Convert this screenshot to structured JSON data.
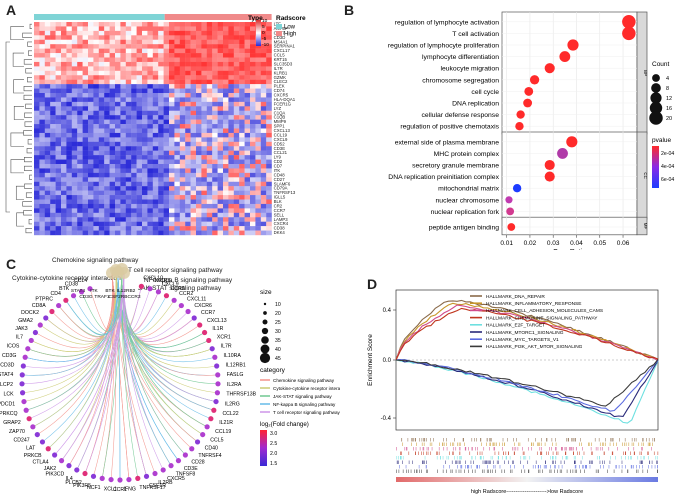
{
  "panels": {
    "a": "A",
    "b": "B",
    "c": "C",
    "d": "D"
  },
  "panel_a": {
    "legend_type_title": "Type",
    "legend_radscore_title": "Radscore",
    "group_labels": [
      "Low",
      "High"
    ],
    "group_colors": [
      "#7fd4d6",
      "#f08a8a"
    ],
    "scale_ticks": [
      "10",
      "5",
      "0",
      "-5",
      "-10"
    ],
    "scale_colors": [
      "#d93030",
      "#ffffff",
      "#2a2ad6"
    ],
    "genes": [
      "LTF",
      "ANPEP",
      "CST7",
      "CD3D",
      "MS4A1",
      "SERPINA1",
      "CXCL17",
      "CCL5",
      "KRT15",
      "SLC35D3",
      "IL7R",
      "KLRB1",
      "GZMK",
      "CLEC2",
      "PLEK",
      "CD74",
      "CXCR5",
      "HLA-DQA1",
      "FCER1G",
      "LYZ",
      "C1QA",
      "C1QB",
      "MMP9",
      "SPP1",
      "CXCL13",
      "CCL19",
      "CXCL9",
      "CD52",
      "CD3E",
      "CCL21",
      "LY9",
      "CD2",
      "CD7",
      "ITK",
      "CD48",
      "CD27",
      "SLAMF6",
      "CD79A",
      "TNFRSF13",
      "IGLL5",
      "BLK",
      "CR2",
      "CCR7",
      "SELL",
      "LAMP3",
      "CXCR4",
      "CD38",
      "DKK4"
    ]
  },
  "panel_b": {
    "title_bp": "BP",
    "title_cc": "CC",
    "title_mf": "MF",
    "xlabel": "GeneRatio",
    "xlim": [
      0.008,
      0.066
    ],
    "xticks": [
      "0.01",
      "0.02",
      "0.03",
      "0.04",
      "0.05",
      "0.06"
    ],
    "count_title": "Count",
    "count_levels": [
      "4",
      "8",
      "12",
      "16",
      "20"
    ],
    "pvalue_title": "pvalue",
    "pvalue_ticks": [
      "2e-04",
      "4e-04",
      "6e-04"
    ],
    "pvalue_colors": [
      "#ff2a2a",
      "#8a2ae6",
      "#1d3cff"
    ],
    "terms": [
      {
        "label": "regulation of lymphocyte activation",
        "x": 0.0625,
        "count": 20,
        "color": "#ff2a2a",
        "group": "BP"
      },
      {
        "label": "T cell activation",
        "x": 0.0625,
        "count": 20,
        "color": "#ff2a2a",
        "group": "BP"
      },
      {
        "label": "regulation of lymphocyte proliferation",
        "x": 0.0385,
        "count": 12,
        "color": "#ff2a2a",
        "group": "BP"
      },
      {
        "label": "lymphocyte differentiation",
        "x": 0.035,
        "count": 11,
        "color": "#ff2a2a",
        "group": "BP"
      },
      {
        "label": "leukocyte migration",
        "x": 0.0285,
        "count": 9,
        "color": "#ff2a2a",
        "group": "BP"
      },
      {
        "label": "chromosome segregation",
        "x": 0.022,
        "count": 7,
        "color": "#ff2a2a",
        "group": "BP"
      },
      {
        "label": "cell cycle",
        "x": 0.0195,
        "count": 6,
        "color": "#ff2a2a",
        "group": "BP"
      },
      {
        "label": "DNA replication",
        "x": 0.019,
        "count": 6,
        "color": "#ff2a2a",
        "group": "BP"
      },
      {
        "label": "cellular defense response",
        "x": 0.016,
        "count": 5,
        "color": "#ff2a2a",
        "group": "BP"
      },
      {
        "label": "regulation of positive chemotaxis",
        "x": 0.0155,
        "count": 5,
        "color": "#ff2a2a",
        "group": "BP"
      },
      {
        "label": "external side of plasma membrane",
        "x": 0.038,
        "count": 12,
        "color": "#ff2a2a",
        "group": "CC"
      },
      {
        "label": "MHC protein complex",
        "x": 0.034,
        "count": 11,
        "color": "#b03aa8",
        "group": "CC"
      },
      {
        "label": "secretory granule membrane",
        "x": 0.0285,
        "count": 9,
        "color": "#ff2a2a",
        "group": "CC"
      },
      {
        "label": "DNA replication preinitiation complex",
        "x": 0.0285,
        "count": 9,
        "color": "#ff2a2a",
        "group": "CC"
      },
      {
        "label": "mitochondrial matrix",
        "x": 0.0145,
        "count": 5,
        "color": "#1d3cff",
        "group": "CC"
      },
      {
        "label": "nuclear chromosome",
        "x": 0.011,
        "count": 3,
        "color": "#c03ab0",
        "group": "CC"
      },
      {
        "label": "nuclear replication fork",
        "x": 0.0115,
        "count": 4,
        "color": "#d23a90",
        "group": "CC"
      },
      {
        "label": "peptide antigen binding",
        "x": 0.012,
        "count": 4,
        "color": "#ff2a2a",
        "group": "MF"
      }
    ]
  },
  "panel_c": {
    "pathways": [
      {
        "label": "Chemokine signaling pathway",
        "color": "#f28b82"
      },
      {
        "label": "Cytokine-cytokine receptor interaction",
        "color": "#c8c86a"
      },
      {
        "label": "JAK-STAT signaling pathway",
        "color": "#66c48a"
      },
      {
        "label": "NF-kappa B signaling pathway",
        "color": "#5ab6e6"
      },
      {
        "label": "T cell receptor signaling pathway",
        "color": "#c98ee6"
      }
    ],
    "size_title": "size",
    "size_levels": [
      "10",
      "20",
      "25",
      "30",
      "35",
      "40",
      "45"
    ],
    "category_title": "category",
    "fc_title": "log₂(Fold change)",
    "fc_ticks": [
      "3.0",
      "2.5",
      "2.0",
      "1.5"
    ],
    "fc_colors": [
      "#ff2233",
      "#a02ad0",
      "#3a2ad6"
    ],
    "genes": [
      "CXCL10",
      "CXCR3",
      "CXCL9",
      "CCR5",
      "CCR2",
      "CXCL11",
      "CXCR6",
      "CCR7",
      "CXCL13",
      "IL1R",
      "XCR1",
      "IL7R",
      "IL10RA",
      "IL12RB1",
      "FASLG",
      "IL2RA",
      "THFRSF13B",
      "IL2RG",
      "CCL22",
      "IL21R",
      "CCL19",
      "CCL5",
      "CD40",
      "TNFRSF4",
      "CD28",
      "CD3E",
      "TNFSF8",
      "CXCR5",
      "IL2RB",
      "CSF1R",
      "TNFRSF17",
      "IFNG",
      "CCR1",
      "XCL1",
      "NCF1",
      "PIK3R5",
      "PLCB2",
      "IL4",
      "PIK3CD",
      "JAK2",
      "CTLA4",
      "PRKCB",
      "LAT",
      "CD247",
      "ZAP70",
      "GRAP2",
      "PRKCQ",
      "PDCD1",
      "LCK",
      "LCP2",
      "STAT4",
      "CD3D",
      "CD3G",
      "ICOS",
      "IL7",
      "JAK3",
      "GMA2",
      "DOCK2",
      "CD8A",
      "PTPRC",
      "CD4",
      "BTK",
      "CD38",
      "CCL4"
    ],
    "hub_genes": [
      "STAT4",
      "CD3G",
      "ITK",
      "TRAF1",
      "BTK",
      "CSF2RB",
      "IL12RB2",
      "CCR3"
    ]
  },
  "panel_d": {
    "ylabel": "Enrichment Score",
    "yticks": [
      "0.4",
      "0.0",
      "-0.4"
    ],
    "xlabel": "high Radscore---------------------->low Radscore",
    "series": [
      {
        "name": "HALLMARK_DNA_REPAIR",
        "color": "#8a6a4a"
      },
      {
        "name": "HALLMARK_INFLAMMATORY_RESPONSE",
        "color": "#c8962a"
      },
      {
        "name": "HALLMARK_CELL_ADHESION_MOLECULES_CAMS",
        "color": "#d04a8a"
      },
      {
        "name": "HALLMARK_CHEMOKINE_SIGNALING_PATHWAY",
        "color": "#c0361e"
      },
      {
        "name": "HALLMARK_E2F_TARGET",
        "color": "#6ee0e0"
      },
      {
        "name": "HALLMARK_MTORC1_SIGNALING",
        "color": "#2a2a7a"
      },
      {
        "name": "HALLMARK_MYC_TARGETS_V1",
        "color": "#5a6ae0"
      },
      {
        "name": "HALLMARK_PI3K_AKT_MTOR_SIGNALING",
        "color": "#3a3a3a"
      }
    ]
  }
}
